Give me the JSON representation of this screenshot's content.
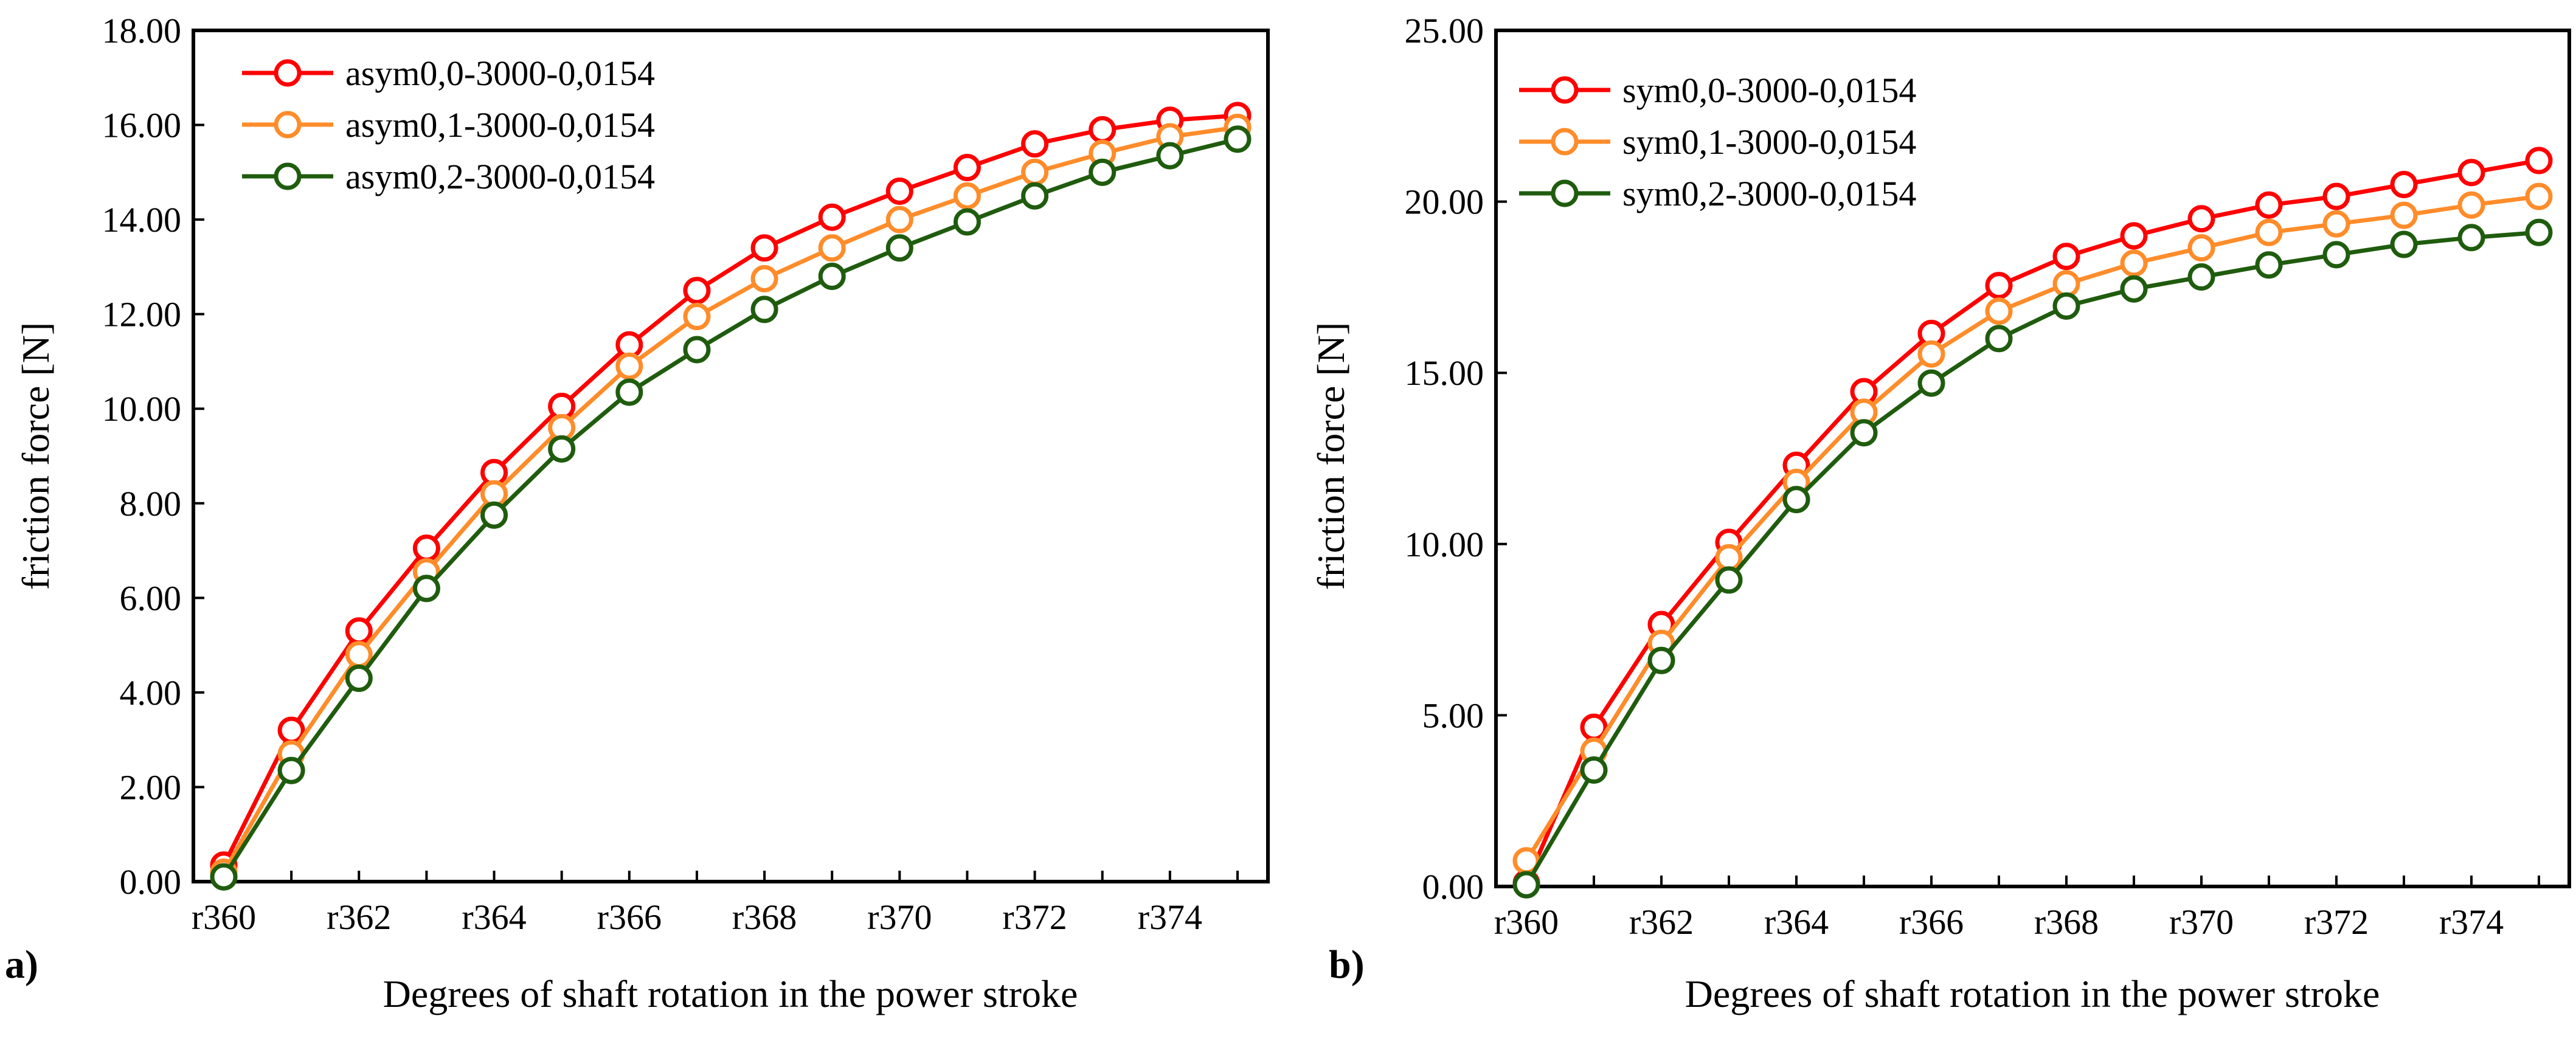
{
  "chart_data": [
    {
      "type": "line",
      "panel_label": "a)",
      "title": "",
      "xlabel": "Degrees of shaft rotation in the power stroke",
      "ylabel": "friction force  [N]",
      "categories": [
        "r360",
        "r361",
        "r362",
        "r363",
        "r364",
        "r365",
        "r366",
        "r367",
        "r368",
        "r369",
        "r370",
        "r371",
        "r372",
        "r373",
        "r374",
        "r375"
      ],
      "tick_labels": [
        "r360",
        "r362",
        "r364",
        "r366",
        "r368",
        "r370",
        "r372",
        "r374"
      ],
      "ylim": [
        0,
        18
      ],
      "yticks": [
        "0.00",
        "2.00",
        "4.00",
        "6.00",
        "8.00",
        "10.00",
        "12.00",
        "14.00",
        "16.00",
        "18.00"
      ],
      "grid": false,
      "legend_position": "top-left",
      "series": [
        {
          "name": "asym0,0-3000-0,0154",
          "color": "#ff0000",
          "values": [
            0.35,
            3.2,
            5.3,
            7.05,
            8.65,
            10.05,
            11.35,
            12.5,
            13.4,
            14.05,
            14.6,
            15.1,
            15.6,
            15.9,
            16.1,
            16.2
          ]
        },
        {
          "name": "asym0,1-3000-0,0154",
          "color": "#ff8c2a",
          "values": [
            0.2,
            2.7,
            4.8,
            6.55,
            8.2,
            9.6,
            10.9,
            11.95,
            12.75,
            13.4,
            14.0,
            14.5,
            15.0,
            15.4,
            15.75,
            15.95
          ]
        },
        {
          "name": "asym0,2-3000-0,0154",
          "color": "#1f5c0e",
          "values": [
            0.1,
            2.35,
            4.3,
            6.2,
            7.75,
            9.15,
            10.35,
            11.25,
            12.1,
            12.8,
            13.4,
            13.95,
            14.5,
            15.0,
            15.35,
            15.7
          ]
        }
      ]
    },
    {
      "type": "line",
      "panel_label": "b)",
      "title": "",
      "xlabel": "Degrees of shaft rotation in the power stroke",
      "ylabel": "friction force  [N]",
      "categories": [
        "r360",
        "r361",
        "r362",
        "r363",
        "r364",
        "r365",
        "r366",
        "r367",
        "r368",
        "r369",
        "r370",
        "r371",
        "r372",
        "r373",
        "r374",
        "r375"
      ],
      "tick_labels": [
        "r360",
        "r362",
        "r364",
        "r366",
        "r368",
        "r370",
        "r372",
        "r374"
      ],
      "ylim": [
        0,
        25
      ],
      "yticks": [
        "0.00",
        "5.00",
        "10.00",
        "15.00",
        "20.00",
        "25.00"
      ],
      "grid": false,
      "legend_position": "top-left",
      "series": [
        {
          "name": "sym0,0-3000-0,0154",
          "color": "#ff0000",
          "values": [
            0.1,
            4.65,
            7.65,
            10.05,
            12.3,
            14.45,
            16.15,
            17.55,
            18.4,
            19.0,
            19.5,
            19.9,
            20.15,
            20.5,
            20.85,
            21.2
          ]
        },
        {
          "name": "sym0,1-3000-0,0154",
          "color": "#ff8c2a",
          "values": [
            0.75,
            3.95,
            7.1,
            9.6,
            11.8,
            13.85,
            15.55,
            16.8,
            17.6,
            18.2,
            18.65,
            19.1,
            19.35,
            19.6,
            19.9,
            20.15
          ]
        },
        {
          "name": "sym0,2-3000-0,0154",
          "color": "#1f5c0e",
          "values": [
            0.05,
            3.4,
            6.6,
            8.95,
            11.3,
            13.25,
            14.7,
            16.0,
            16.95,
            17.45,
            17.8,
            18.15,
            18.45,
            18.75,
            18.95,
            19.1
          ]
        }
      ]
    }
  ]
}
